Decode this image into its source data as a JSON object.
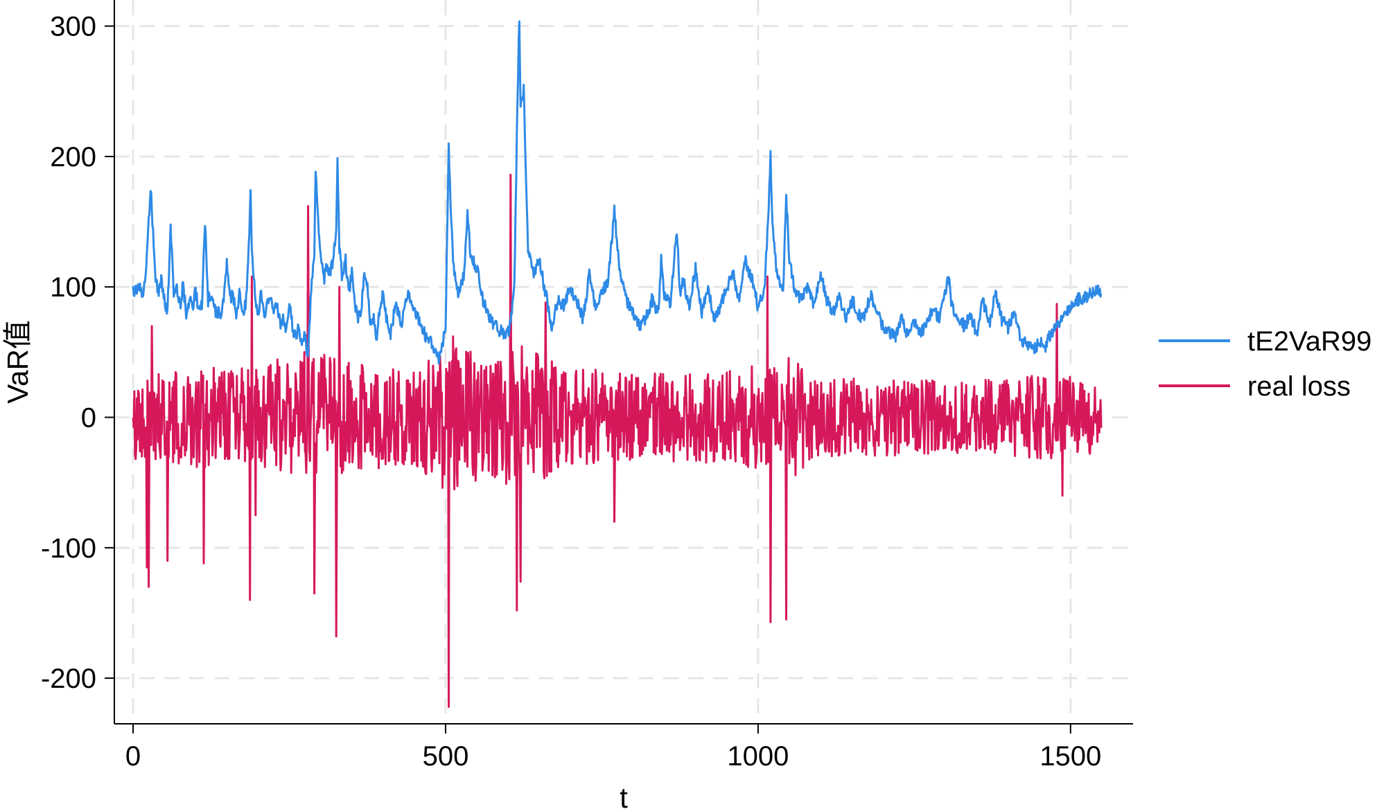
{
  "chart_data": {
    "type": "line",
    "xlabel": "t",
    "ylabel": "VaR值",
    "xlim": [
      -30,
      1600
    ],
    "ylim": [
      -235,
      320
    ],
    "xticks": [
      0,
      500,
      1000,
      1500
    ],
    "yticks": [
      -200,
      -100,
      0,
      100,
      200,
      300
    ],
    "grid": true,
    "legend_position": "right",
    "n_points": 1550,
    "series": [
      {
        "name": "tE2VaR99",
        "color": "#2e8ae6",
        "anchor_points": [
          [
            0,
            96
          ],
          [
            5,
            97
          ],
          [
            10,
            100
          ],
          [
            15,
            92
          ],
          [
            20,
            110
          ],
          [
            25,
            150
          ],
          [
            28,
            178
          ],
          [
            30,
            160
          ],
          [
            35,
            110
          ],
          [
            40,
            95
          ],
          [
            45,
            105
          ],
          [
            50,
            90
          ],
          [
            55,
            80
          ],
          [
            60,
            148
          ],
          [
            65,
            95
          ],
          [
            70,
            100
          ],
          [
            75,
            85
          ],
          [
            80,
            102
          ],
          [
            85,
            80
          ],
          [
            90,
            90
          ],
          [
            95,
            85
          ],
          [
            100,
            97
          ],
          [
            105,
            82
          ],
          [
            110,
            85
          ],
          [
            115,
            150
          ],
          [
            120,
            90
          ],
          [
            125,
            95
          ],
          [
            130,
            82
          ],
          [
            135,
            80
          ],
          [
            140,
            80
          ],
          [
            145,
            90
          ],
          [
            150,
            118
          ],
          [
            155,
            90
          ],
          [
            160,
            95
          ],
          [
            165,
            75
          ],
          [
            170,
            95
          ],
          [
            175,
            82
          ],
          [
            180,
            85
          ],
          [
            185,
            128
          ],
          [
            188,
            178
          ],
          [
            190,
            130
          ],
          [
            195,
            95
          ],
          [
            200,
            80
          ],
          [
            205,
            95
          ],
          [
            210,
            75
          ],
          [
            215,
            90
          ],
          [
            220,
            90
          ],
          [
            225,
            80
          ],
          [
            230,
            88
          ],
          [
            235,
            72
          ],
          [
            240,
            75
          ],
          [
            245,
            65
          ],
          [
            250,
            90
          ],
          [
            255,
            70
          ],
          [
            260,
            60
          ],
          [
            265,
            70
          ],
          [
            270,
            55
          ],
          [
            275,
            62
          ],
          [
            280,
            45
          ],
          [
            285,
            100
          ],
          [
            290,
            125
          ],
          [
            292,
            188
          ],
          [
            295,
            160
          ],
          [
            300,
            125
          ],
          [
            305,
            105
          ],
          [
            310,
            115
          ],
          [
            315,
            110
          ],
          [
            320,
            120
          ],
          [
            325,
            145
          ],
          [
            327,
            195
          ],
          [
            330,
            130
          ],
          [
            335,
            105
          ],
          [
            340,
            120
          ],
          [
            345,
            95
          ],
          [
            350,
            110
          ],
          [
            355,
            88
          ],
          [
            360,
            75
          ],
          [
            365,
            80
          ],
          [
            370,
            115
          ],
          [
            375,
            100
          ],
          [
            380,
            70
          ],
          [
            385,
            78
          ],
          [
            390,
            60
          ],
          [
            395,
            85
          ],
          [
            400,
            95
          ],
          [
            410,
            60
          ],
          [
            420,
            85
          ],
          [
            430,
            72
          ],
          [
            440,
            95
          ],
          [
            450,
            80
          ],
          [
            460,
            72
          ],
          [
            470,
            60
          ],
          [
            480,
            55
          ],
          [
            490,
            45
          ],
          [
            495,
            55
          ],
          [
            500,
            70
          ],
          [
            505,
            210
          ],
          [
            508,
            160
          ],
          [
            512,
            120
          ],
          [
            520,
            95
          ],
          [
            530,
            110
          ],
          [
            535,
            160
          ],
          [
            540,
            125
          ],
          [
            550,
            115
          ],
          [
            560,
            90
          ],
          [
            570,
            75
          ],
          [
            580,
            70
          ],
          [
            590,
            65
          ],
          [
            600,
            65
          ],
          [
            605,
            75
          ],
          [
            610,
            100
          ],
          [
            615,
            245
          ],
          [
            618,
            305
          ],
          [
            620,
            240
          ],
          [
            625,
            250
          ],
          [
            628,
            200
          ],
          [
            632,
            130
          ],
          [
            640,
            110
          ],
          [
            650,
            120
          ],
          [
            660,
            95
          ],
          [
            670,
            70
          ],
          [
            680,
            90
          ],
          [
            690,
            85
          ],
          [
            700,
            100
          ],
          [
            710,
            88
          ],
          [
            720,
            75
          ],
          [
            730,
            110
          ],
          [
            740,
            85
          ],
          [
            750,
            95
          ],
          [
            760,
            105
          ],
          [
            765,
            130
          ],
          [
            770,
            158
          ],
          [
            775,
            130
          ],
          [
            780,
            105
          ],
          [
            790,
            90
          ],
          [
            800,
            80
          ],
          [
            810,
            70
          ],
          [
            820,
            75
          ],
          [
            830,
            90
          ],
          [
            840,
            80
          ],
          [
            845,
            120
          ],
          [
            850,
            95
          ],
          [
            860,
            88
          ],
          [
            870,
            145
          ],
          [
            875,
            95
          ],
          [
            880,
            105
          ],
          [
            890,
            85
          ],
          [
            900,
            115
          ],
          [
            910,
            80
          ],
          [
            920,
            100
          ],
          [
            930,
            75
          ],
          [
            940,
            85
          ],
          [
            950,
            100
          ],
          [
            960,
            110
          ],
          [
            970,
            90
          ],
          [
            980,
            120
          ],
          [
            990,
            105
          ],
          [
            1000,
            85
          ],
          [
            1010,
            95
          ],
          [
            1015,
            140
          ],
          [
            1020,
            200
          ],
          [
            1023,
            150
          ],
          [
            1030,
            110
          ],
          [
            1040,
            95
          ],
          [
            1045,
            173
          ],
          [
            1050,
            120
          ],
          [
            1060,
            95
          ],
          [
            1070,
            90
          ],
          [
            1080,
            100
          ],
          [
            1090,
            85
          ],
          [
            1100,
            110
          ],
          [
            1110,
            90
          ],
          [
            1120,
            80
          ],
          [
            1130,
            95
          ],
          [
            1140,
            75
          ],
          [
            1150,
            90
          ],
          [
            1160,
            80
          ],
          [
            1170,
            75
          ],
          [
            1180,
            95
          ],
          [
            1190,
            80
          ],
          [
            1200,
            70
          ],
          [
            1210,
            65
          ],
          [
            1220,
            62
          ],
          [
            1230,
            75
          ],
          [
            1240,
            60
          ],
          [
            1250,
            72
          ],
          [
            1260,
            65
          ],
          [
            1270,
            70
          ],
          [
            1280,
            85
          ],
          [
            1290,
            75
          ],
          [
            1300,
            95
          ],
          [
            1305,
            110
          ],
          [
            1310,
            85
          ],
          [
            1320,
            75
          ],
          [
            1330,
            70
          ],
          [
            1340,
            78
          ],
          [
            1350,
            65
          ],
          [
            1360,
            90
          ],
          [
            1370,
            70
          ],
          [
            1380,
            95
          ],
          [
            1390,
            75
          ],
          [
            1400,
            68
          ],
          [
            1410,
            80
          ],
          [
            1420,
            60
          ],
          [
            1430,
            58
          ],
          [
            1440,
            52
          ],
          [
            1450,
            58
          ],
          [
            1460,
            55
          ],
          [
            1470,
            65
          ],
          [
            1480,
            72
          ],
          [
            1490,
            80
          ],
          [
            1500,
            85
          ],
          [
            1510,
            90
          ],
          [
            1520,
            92
          ],
          [
            1530,
            94
          ],
          [
            1540,
            96
          ],
          [
            1549,
            97
          ]
        ]
      },
      {
        "name": "real loss",
        "color": "#d6185b",
        "center": 0,
        "volatility": [
          [
            0,
            32
          ],
          [
            100,
            38
          ],
          [
            200,
            40
          ],
          [
            280,
            52
          ],
          [
            350,
            42
          ],
          [
            450,
            36
          ],
          [
            500,
            58
          ],
          [
            560,
            48
          ],
          [
            620,
            55
          ],
          [
            700,
            38
          ],
          [
            800,
            34
          ],
          [
            900,
            34
          ],
          [
            1000,
            40
          ],
          [
            1050,
            48
          ],
          [
            1100,
            32
          ],
          [
            1200,
            30
          ],
          [
            1300,
            28
          ],
          [
            1400,
            30
          ],
          [
            1480,
            36
          ],
          [
            1549,
            26
          ]
        ],
        "extreme_points": [
          [
            2,
            20
          ],
          [
            22,
            -115
          ],
          [
            25,
            -130
          ],
          [
            30,
            70
          ],
          [
            55,
            -110
          ],
          [
            113,
            -112
          ],
          [
            187,
            -140
          ],
          [
            190,
            108
          ],
          [
            196,
            -75
          ],
          [
            280,
            162
          ],
          [
            284,
            -5
          ],
          [
            290,
            -135
          ],
          [
            325,
            -168
          ],
          [
            330,
            100
          ],
          [
            505,
            -222
          ],
          [
            512,
            62
          ],
          [
            604,
            186
          ],
          [
            610,
            -5
          ],
          [
            614,
            -148
          ],
          [
            620,
            -126
          ],
          [
            660,
            88
          ],
          [
            770,
            -80
          ],
          [
            1015,
            108
          ],
          [
            1020,
            -157
          ],
          [
            1045,
            -155
          ],
          [
            1478,
            87
          ],
          [
            1487,
            -60
          ],
          [
            1549,
            -8
          ]
        ]
      }
    ]
  }
}
